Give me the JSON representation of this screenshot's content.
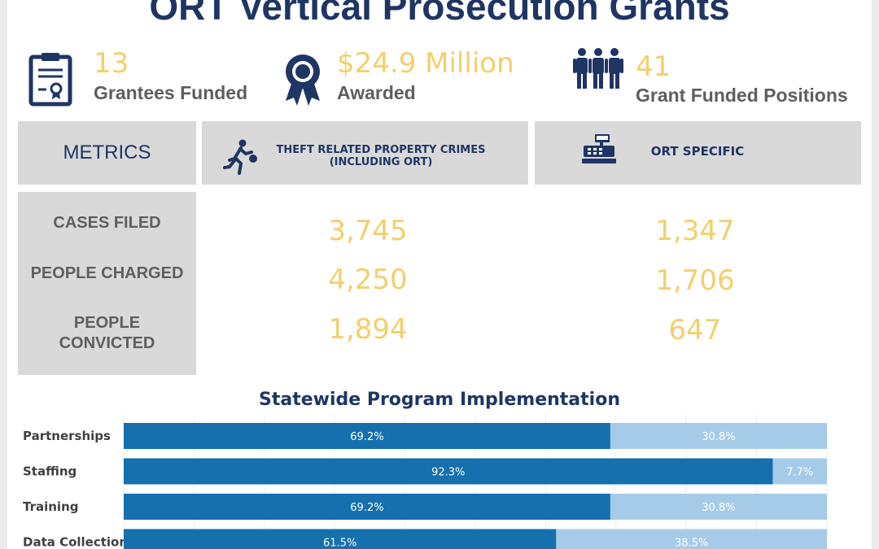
{
  "title": "ORT Vertical Prosecution Grants",
  "stats": [
    {
      "value": "13",
      "label": "Grantees Funded",
      "icon": "certificate-clipboard-icon"
    },
    {
      "value": "$24.9 Million",
      "label": "Awarded",
      "icon": "award-ribbon-icon"
    },
    {
      "value": "41",
      "label": "Grant Funded Positions",
      "icon": "people-group-icon"
    }
  ],
  "table": {
    "metrics_header": "METRICS",
    "columns": [
      {
        "label_line1": "THEFT RELATED PROPERTY CRIMES",
        "label_line2": "(INCLUDING ORT)",
        "icon": "running-thief-icon"
      },
      {
        "label_line1": "ORT SPECIFIC",
        "icon": "cash-register-icon"
      }
    ],
    "rows": [
      {
        "label_line1": "CASES FILED",
        "values": [
          "3,745",
          "1,347"
        ]
      },
      {
        "label_line1": "PEOPLE CHARGED",
        "values": [
          "4,250",
          "1,706"
        ]
      },
      {
        "label_line1": "PEOPLE",
        "label_line2": "CONVICTED",
        "values": [
          "1,894",
          "647"
        ]
      }
    ]
  },
  "colors": {
    "navy": "#1f3563",
    "gold": "#f3cf6b",
    "bar_dark": "#1570ad",
    "bar_light": "#a6cbe8"
  },
  "chart_data": {
    "type": "bar",
    "orientation": "horizontal",
    "stacked": true,
    "title": "Statewide Program Implementation",
    "categories": [
      "Partnerships",
      "Staffing",
      "Training",
      "Data Collection"
    ],
    "series": [
      {
        "values": [
          69.2,
          92.3,
          69.2,
          61.5
        ],
        "labels": [
          "69.2%",
          "92.3%",
          "69.2%",
          "61.5%"
        ]
      },
      {
        "values": [
          30.8,
          7.7,
          30.8,
          38.5
        ],
        "labels": [
          "30.8%",
          "7.7%",
          "30.8%",
          "38.5%"
        ]
      }
    ],
    "xlim": [
      0,
      100
    ],
    "grid": true
  }
}
